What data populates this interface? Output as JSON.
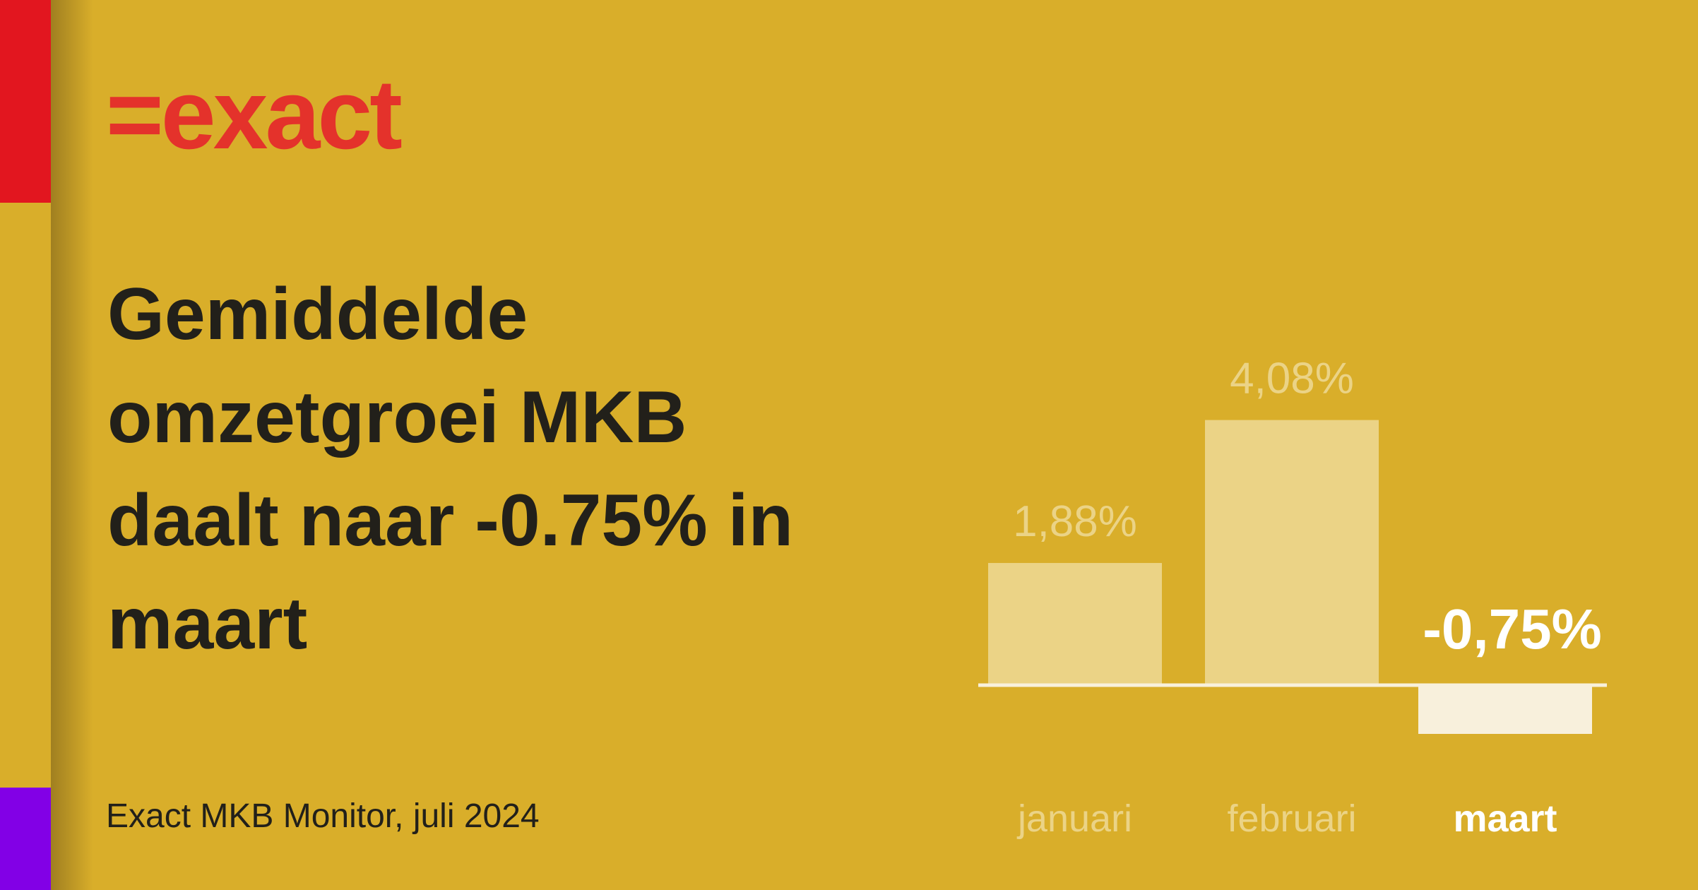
{
  "logo": "=exact",
  "chart_data": {
    "type": "bar",
    "title": "Gemiddelde omzetgroei MKB daalt naar -0.75% in maart",
    "source": "Exact MKB Monitor, juli 2024",
    "categories": [
      "januari",
      "februari",
      "maart"
    ],
    "values": [
      1.88,
      4.08,
      -0.75
    ],
    "value_labels": [
      "1,88%",
      "4,08%",
      "-0,75%"
    ],
    "colors": [
      "#ebd386",
      "#ebd386",
      "#f8f0dc"
    ]
  }
}
